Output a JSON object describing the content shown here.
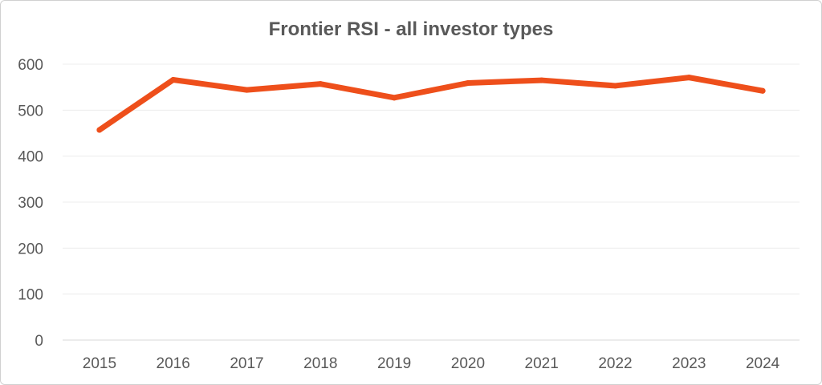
{
  "chart_data": {
    "type": "line",
    "title": "Frontier RSI - all investor types",
    "xlabel": "",
    "ylabel": "",
    "categories": [
      "2015",
      "2016",
      "2017",
      "2018",
      "2019",
      "2020",
      "2021",
      "2022",
      "2023",
      "2024"
    ],
    "series": [
      {
        "values": [
          457,
          566,
          544,
          557,
          527,
          559,
          565,
          553,
          571,
          542
        ],
        "color": "#EE4F1B"
      }
    ],
    "ylim": [
      0,
      600
    ],
    "yticks": [
      0,
      100,
      200,
      300,
      400,
      500,
      600
    ],
    "grid": true,
    "legend": "none"
  }
}
